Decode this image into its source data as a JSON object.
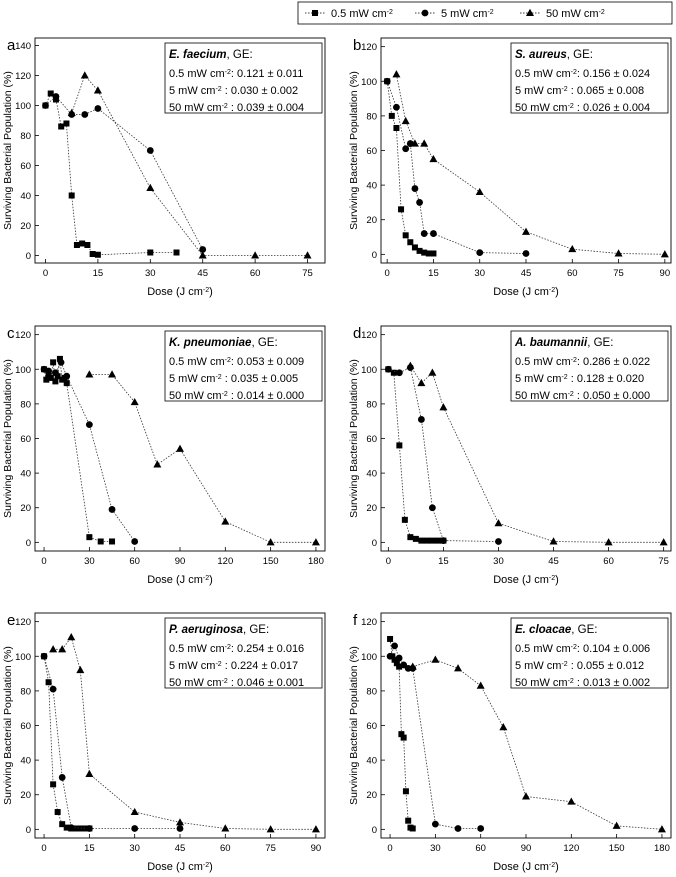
{
  "legend": {
    "items": [
      {
        "label": "0.5 mW cm",
        "sup": "-2",
        "marker": "square"
      },
      {
        "label": "5 mW cm",
        "sup": "-2",
        "marker": "circle"
      },
      {
        "label": "50 mW cm",
        "sup": "-2",
        "marker": "triangle"
      }
    ]
  },
  "chart_data": [
    {
      "type": "scatter",
      "panel_label": "a",
      "organism": "E. faecium",
      "ge_suffix": ", GE:",
      "ge_rows": [
        {
          "lead": "0.5 mW cm",
          "sup": "-2",
          "tail": ": 0.121 ± 0.011"
        },
        {
          "lead": "5 mW cm",
          "sup": "-2",
          "tail": "   : 0.030 ± 0.002"
        },
        {
          "lead": "50 mW cm",
          "sup": "-2",
          "tail": " : 0.039 ± 0.004"
        }
      ],
      "xlabel": "Dose (J cm",
      "xlabel_sup": "-2",
      "xlabel_tail": ")",
      "ylabel": "Surviving Bacterial Population (%)",
      "xlim": [
        -3,
        80
      ],
      "ylim": [
        -5,
        145
      ],
      "xticks": [
        0,
        15,
        30,
        45,
        60,
        75
      ],
      "yticks": [
        0,
        20,
        40,
        60,
        80,
        100,
        120,
        140
      ],
      "series": [
        {
          "marker": "square",
          "x": [
            0,
            1.5,
            3,
            4.5,
            6,
            7.5,
            9,
            10.5,
            12,
            13.5,
            15,
            30,
            37.5
          ],
          "y": [
            100,
            108,
            104,
            86,
            88,
            40,
            7,
            8,
            7,
            1,
            0.5,
            2,
            2
          ]
        },
        {
          "marker": "circle",
          "x": [
            0,
            3,
            7.5,
            11.25,
            15,
            30,
            45
          ],
          "y": [
            100,
            106,
            94,
            94,
            98,
            70,
            4
          ]
        },
        {
          "marker": "triangle",
          "x": [
            7.5,
            11.25,
            15,
            30,
            45,
            60,
            75
          ],
          "y": [
            95,
            120,
            110,
            45,
            0,
            0,
            0
          ]
        }
      ]
    },
    {
      "type": "scatter",
      "panel_label": "b",
      "organism": "S. aureus",
      "ge_suffix": ", GE:",
      "ge_rows": [
        {
          "lead": "0.5 mW cm",
          "sup": "-2",
          "tail": ": 0.156 ± 0.024"
        },
        {
          "lead": "5 mW cm",
          "sup": "-2",
          "tail": "   : 0.065 ± 0.008"
        },
        {
          "lead": "50 mW cm",
          "sup": "-2",
          "tail": " : 0.026 ± 0.004"
        }
      ],
      "xlabel": "Dose (J cm",
      "xlabel_sup": "-2",
      "xlabel_tail": ")",
      "ylabel": "Surviving Bacterial Population (%)",
      "xlim": [
        -2,
        92
      ],
      "ylim": [
        -5,
        125
      ],
      "xticks": [
        0,
        15,
        30,
        45,
        60,
        75,
        90
      ],
      "yticks": [
        0,
        20,
        40,
        60,
        80,
        100,
        120
      ],
      "series": [
        {
          "marker": "square",
          "x": [
            0,
            1.5,
            3,
            4.5,
            6,
            7.5,
            9,
            10.5,
            12,
            13.5,
            15
          ],
          "y": [
            100,
            80,
            73,
            26,
            11,
            7,
            4,
            2,
            1,
            0.5,
            0.5
          ]
        },
        {
          "marker": "circle",
          "x": [
            0,
            3,
            6,
            7.5,
            9,
            10.5,
            12,
            15,
            30,
            45
          ],
          "y": [
            100,
            85,
            61,
            64,
            38,
            30,
            12,
            12,
            1,
            0.5
          ]
        },
        {
          "marker": "triangle",
          "x": [
            3,
            6,
            9,
            12,
            15,
            30,
            45,
            60,
            75,
            90
          ],
          "y": [
            104,
            77,
            64,
            64,
            55,
            36,
            13,
            3,
            0.5,
            0
          ]
        }
      ]
    },
    {
      "type": "scatter",
      "panel_label": "c",
      "organism": "K. pneumoniae",
      "ge_suffix": ", GE:",
      "ge_rows": [
        {
          "lead": "0.5 mW cm",
          "sup": "-2",
          "tail": ": 0.053 ± 0.009"
        },
        {
          "lead": "5 mW cm",
          "sup": "-2",
          "tail": "   : 0.035 ± 0.005"
        },
        {
          "lead": "50 mW cm",
          "sup": "-2",
          "tail": " : 0.014 ± 0.000"
        }
      ],
      "xlabel": "Dose (J cm",
      "xlabel_sup": "-2",
      "xlabel_tail": ")",
      "ylabel": "Surviving Bacterial Population (%)",
      "xlim": [
        -6,
        186
      ],
      "ylim": [
        -5,
        125
      ],
      "xticks": [
        0,
        30,
        60,
        90,
        120,
        150,
        180
      ],
      "yticks": [
        0,
        20,
        40,
        60,
        80,
        100,
        120
      ],
      "series": [
        {
          "marker": "square",
          "x": [
            0,
            1.5,
            3,
            4.5,
            6,
            7.5,
            9,
            10.5,
            12,
            13.5,
            15,
            30,
            37.5,
            45
          ],
          "y": [
            100,
            94,
            97,
            95,
            104,
            93,
            96,
            106,
            94,
            95,
            92,
            3,
            0.5,
            0.5
          ]
        },
        {
          "marker": "circle",
          "x": [
            0,
            3,
            7.5,
            11.25,
            15,
            30,
            45,
            60
          ],
          "y": [
            100,
            99,
            98,
            104,
            96,
            68,
            19,
            0.5
          ]
        },
        {
          "marker": "triangle",
          "x": [
            30,
            45,
            60,
            75,
            90,
            120,
            150,
            180
          ],
          "y": [
            97,
            97,
            81,
            45,
            54,
            12,
            0,
            0
          ]
        }
      ]
    },
    {
      "type": "scatter",
      "panel_label": "d",
      "organism": "A. baumannii",
      "ge_suffix": ", GE:",
      "ge_rows": [
        {
          "lead": "0.5 mW cm",
          "sup": "-2",
          "tail": ": 0.286 ± 0.022"
        },
        {
          "lead": "5 mW cm",
          "sup": "-2",
          "tail": "   : 0.128 ± 0.020"
        },
        {
          "lead": "50 mW cm",
          "sup": "-2",
          "tail": " : 0.050 ± 0.000"
        }
      ],
      "xlabel": "Dose (J cm",
      "xlabel_sup": "-2",
      "xlabel_tail": ")",
      "ylabel": "Surviving Bacterial Population (%)",
      "xlim": [
        -2,
        77
      ],
      "ylim": [
        -5,
        125
      ],
      "xticks": [
        0,
        15,
        30,
        45,
        60,
        75
      ],
      "yticks": [
        0,
        20,
        40,
        60,
        80,
        100,
        120
      ],
      "series": [
        {
          "marker": "square",
          "x": [
            0,
            1.5,
            3,
            4.5,
            6,
            7.5,
            9,
            10.5,
            12,
            13.5,
            15
          ],
          "y": [
            100,
            98,
            56,
            13,
            3,
            2,
            1,
            1,
            1,
            1,
            1
          ]
        },
        {
          "marker": "circle",
          "x": [
            0,
            3,
            6,
            9,
            12,
            15,
            30
          ],
          "y": [
            100,
            98,
            101,
            71,
            20,
            1,
            0.5
          ]
        },
        {
          "marker": "triangle",
          "x": [
            6,
            9,
            12,
            15,
            30,
            45,
            60,
            75
          ],
          "y": [
            102,
            92,
            98,
            78,
            11,
            0.5,
            0,
            0
          ]
        }
      ]
    },
    {
      "type": "scatter",
      "panel_label": "e",
      "organism": "P. aeruginosa",
      "ge_suffix": ", GE:",
      "ge_rows": [
        {
          "lead": "0.5 mW cm",
          "sup": "-2",
          "tail": ": 0.254 ± 0.016"
        },
        {
          "lead": "5 mW cm",
          "sup": "-2",
          "tail": "   : 0.224 ± 0.017"
        },
        {
          "lead": "50 mW cm",
          "sup": "-2",
          "tail": " : 0.046 ± 0.001"
        }
      ],
      "xlabel": "Dose (J cm",
      "xlabel_sup": "-2",
      "xlabel_tail": ")",
      "ylabel": "Surviving Bacterial Population (%)",
      "xlim": [
        -3,
        93
      ],
      "ylim": [
        -5,
        125
      ],
      "xticks": [
        0,
        15,
        30,
        45,
        60,
        75,
        90
      ],
      "yticks": [
        0,
        20,
        40,
        60,
        80,
        100,
        120
      ],
      "series": [
        {
          "marker": "square",
          "x": [
            0,
            1.5,
            3,
            4.5,
            6,
            7.5,
            9,
            10.5,
            12,
            13.5,
            15
          ],
          "y": [
            100,
            85,
            26,
            10,
            3,
            1,
            0.5,
            0.5,
            0.5,
            0.5,
            0.5
          ]
        },
        {
          "marker": "circle",
          "x": [
            0,
            3,
            6,
            9,
            15,
            30,
            45
          ],
          "y": [
            100,
            81,
            30,
            1,
            0.5,
            0.5,
            0.5
          ]
        },
        {
          "marker": "triangle",
          "x": [
            3,
            6,
            9,
            12,
            15,
            30,
            45,
            60,
            75,
            90
          ],
          "y": [
            104,
            104,
            111,
            92,
            32,
            10,
            4,
            0.5,
            0,
            0
          ]
        }
      ]
    },
    {
      "type": "scatter",
      "panel_label": "f",
      "organism": "E. cloacae",
      "ge_suffix": ", GE:",
      "ge_rows": [
        {
          "lead": "0.5 mW cm",
          "sup": "-2",
          "tail": ": 0.104 ± 0.006"
        },
        {
          "lead": "5 mW cm",
          "sup": "-2",
          "tail": "   : 0.055 ± 0.012"
        },
        {
          "lead": "50 mW cm",
          "sup": "-2",
          "tail": " : 0.013 ± 0.002"
        }
      ],
      "xlabel": "Dose (J cm",
      "xlabel_sup": "-2",
      "xlabel_tail": ")",
      "ylabel": "Surviving Bacterial Population (%)",
      "xlim": [
        -6,
        186
      ],
      "ylim": [
        -5,
        125
      ],
      "xticks": [
        0,
        30,
        60,
        90,
        120,
        150,
        180
      ],
      "yticks": [
        0,
        20,
        40,
        60,
        80,
        100,
        120
      ],
      "series": [
        {
          "marker": "square",
          "x": [
            0,
            1.5,
            3,
            4.5,
            6,
            7.5,
            9,
            10.5,
            12,
            13.5,
            15
          ],
          "y": [
            110,
            100,
            98,
            96,
            94,
            55,
            53,
            22,
            5,
            1,
            0.5
          ]
        },
        {
          "marker": "circle",
          "x": [
            0,
            3,
            6,
            9,
            12,
            15,
            30,
            45,
            60
          ],
          "y": [
            100,
            106,
            99,
            95,
            93,
            93,
            3,
            0.5,
            0.5
          ]
        },
        {
          "marker": "triangle",
          "x": [
            15,
            30,
            45,
            60,
            75,
            90,
            120,
            150,
            180
          ],
          "y": [
            94,
            98,
            93,
            83,
            59,
            19,
            16,
            2,
            0
          ]
        }
      ]
    }
  ]
}
